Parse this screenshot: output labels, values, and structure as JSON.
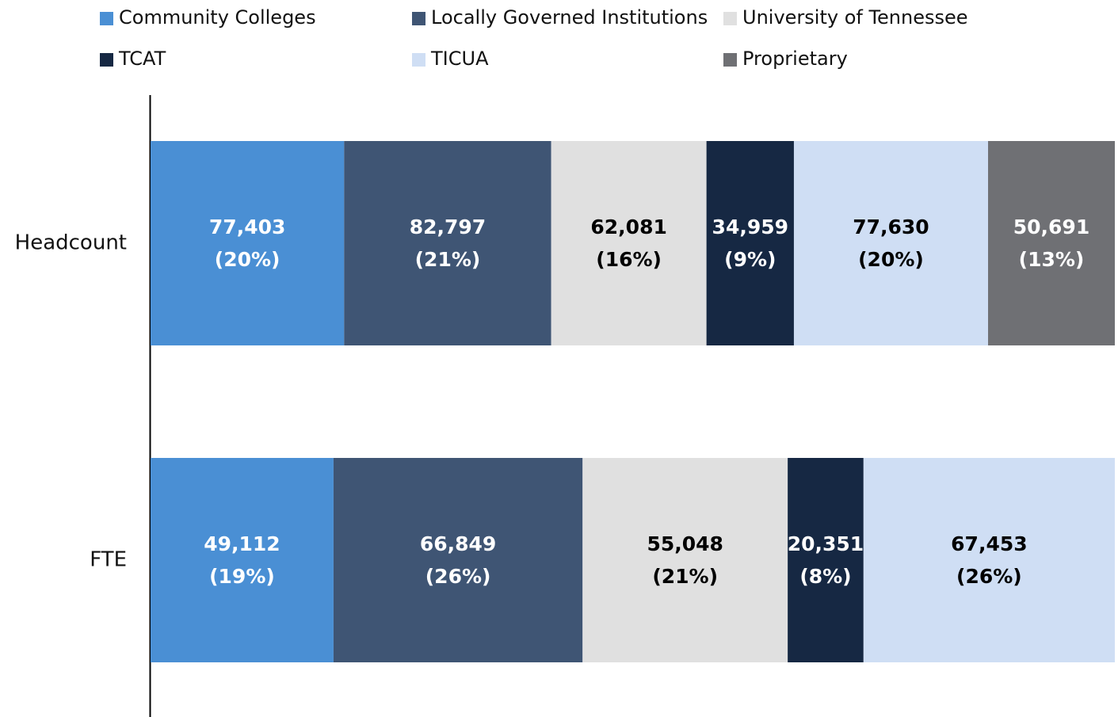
{
  "chart_data": {
    "type": "stacked_bar_100",
    "orientation": "horizontal",
    "categories": [
      "Headcount",
      "FTE"
    ],
    "series": [
      {
        "name": "Community Colleges",
        "color": "#4a8fd4",
        "label_color": "#ffffff",
        "values": [
          77403,
          49112
        ],
        "value_labels": [
          "77,403",
          "49,112"
        ],
        "share_labels": [
          "(20%)",
          "(19%)"
        ]
      },
      {
        "name": "Locally Governed Institutions",
        "color": "#3f5574",
        "label_color": "#ffffff",
        "values": [
          82797,
          66849
        ],
        "value_labels": [
          "82,797",
          "66,849"
        ],
        "share_labels": [
          "(21%)",
          "(26%)"
        ]
      },
      {
        "name": "University of Tennessee",
        "color": "#e0e0e0",
        "label_color": "#000000",
        "values": [
          62081,
          55048
        ],
        "value_labels": [
          "62,081",
          "55,048"
        ],
        "share_labels": [
          "(16%)",
          "(21%)"
        ]
      },
      {
        "name": "TCAT",
        "color": "#162843",
        "label_color": "#ffffff",
        "values": [
          34959,
          20351
        ],
        "value_labels": [
          "34,959",
          "20,351"
        ],
        "share_labels": [
          "(9%)",
          "(8%)"
        ]
      },
      {
        "name": "TICUA",
        "color": "#cfdef4",
        "label_color": "#000000",
        "values": [
          77630,
          67453
        ],
        "value_labels": [
          "77,630",
          "67,453"
        ],
        "share_labels": [
          "(20%)",
          "(26%)"
        ]
      },
      {
        "name": "Proprietary",
        "color": "#6f7074",
        "label_color": "#ffffff",
        "values": [
          50691,
          null
        ],
        "value_labels": [
          "50,691",
          null
        ],
        "share_labels": [
          "(13%)",
          null
        ]
      }
    ],
    "legend": "top"
  }
}
